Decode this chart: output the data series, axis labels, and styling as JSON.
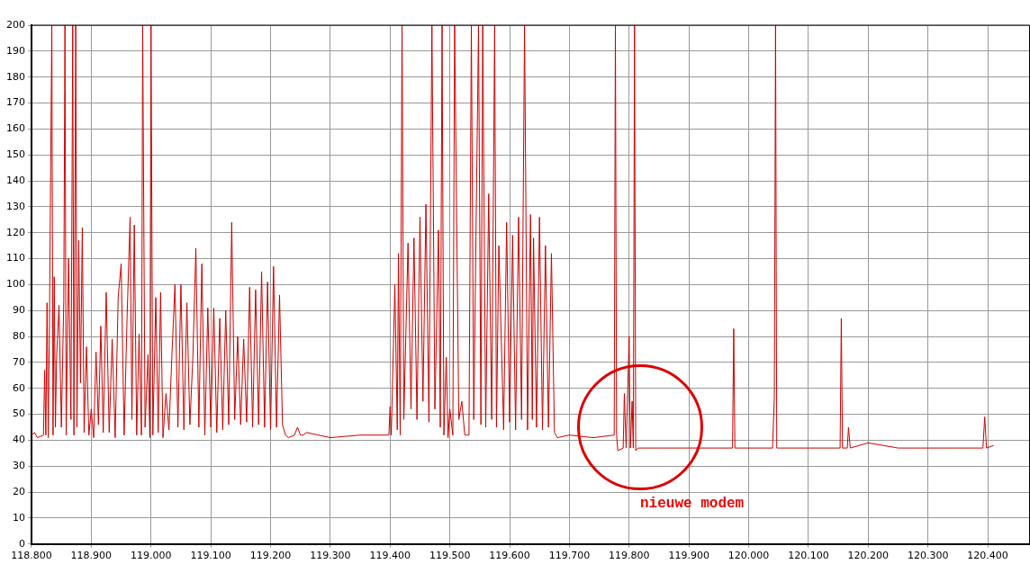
{
  "chart_data": {
    "type": "line",
    "xlim": [
      118800,
      120470
    ],
    "ylim": [
      0,
      200
    ],
    "xticks": [
      {
        "value": 118800,
        "label": "118.800"
      },
      {
        "value": 118900,
        "label": "118.900"
      },
      {
        "value": 119000,
        "label": "119.000"
      },
      {
        "value": 119100,
        "label": "119.100"
      },
      {
        "value": 119200,
        "label": "119.200"
      },
      {
        "value": 119300,
        "label": "119.300"
      },
      {
        "value": 119400,
        "label": "119.400"
      },
      {
        "value": 119500,
        "label": "119.500"
      },
      {
        "value": 119600,
        "label": "119.600"
      },
      {
        "value": 119700,
        "label": "119.700"
      },
      {
        "value": 119800,
        "label": "119.800"
      },
      {
        "value": 119900,
        "label": "119.900"
      },
      {
        "value": 120000,
        "label": "120.000"
      },
      {
        "value": 120100,
        "label": "120.100"
      },
      {
        "value": 120200,
        "label": "120.200"
      },
      {
        "value": 120300,
        "label": "120.300"
      },
      {
        "value": 120400,
        "label": "120.400"
      }
    ],
    "yticks": [
      0,
      10,
      20,
      30,
      40,
      50,
      60,
      70,
      80,
      90,
      100,
      110,
      120,
      130,
      140,
      150,
      160,
      170,
      180,
      190,
      200
    ],
    "grid": true,
    "legend": false,
    "marker": "none",
    "annotations": [
      "nieuwe modem"
    ],
    "series": [
      {
        "color": "#cc0000",
        "x": [
          118800,
          118805,
          118810,
          118820,
          118822,
          118824,
          118826,
          118828,
          118830,
          118834,
          118836,
          118838,
          118840,
          118842,
          118846,
          118850,
          118854,
          118856,
          118858,
          118862,
          118866,
          118869,
          118871,
          118874,
          118876,
          118879,
          118882,
          118885,
          118888,
          118892,
          118896,
          118900,
          118904,
          118908,
          118912,
          118916,
          118920,
          118925,
          118930,
          118935,
          118940,
          118945,
          118950,
          118955,
          118960,
          118965,
          118968,
          118972,
          118976,
          118980,
          118984,
          118986,
          118990,
          118995,
          118998,
          119000,
          119003,
          119008,
          119012,
          119016,
          119020,
          119025,
          119030,
          119035,
          119040,
          119045,
          119050,
          119055,
          119060,
          119065,
          119070,
          119075,
          119080,
          119085,
          119090,
          119095,
          119100,
          119105,
          119110,
          119115,
          119120,
          119125,
          119130,
          119135,
          119140,
          119145,
          119150,
          119155,
          119160,
          119165,
          119170,
          119175,
          119180,
          119185,
          119190,
          119195,
          119200,
          119205,
          119210,
          119215,
          119220,
          119225,
          119230,
          119240,
          119245,
          119250,
          119255,
          119260,
          119300,
          119350,
          119398,
          119400,
          119402,
          119408,
          119412,
          119414,
          119417,
          119420,
          119423,
          119430,
          119435,
          119440,
          119445,
          119450,
          119455,
          119460,
          119465,
          119470,
          119475,
          119481,
          119484,
          119487,
          119490,
          119494,
          119497,
          119500,
          119505,
          119508,
          119515,
          119520,
          119525,
          119528,
          119532,
          119536,
          119540,
          119548,
          119552,
          119555,
          119560,
          119565,
          119570,
          119575,
          119578,
          119582,
          119590,
          119595,
          119600,
          119605,
          119610,
          119615,
          119620,
          119625,
          119630,
          119635,
          119638,
          119640,
          119645,
          119650,
          119655,
          119660,
          119665,
          119670,
          119675,
          119680,
          119700,
          119740,
          119775,
          119777,
          119779,
          119781,
          119790,
          119792,
          119795,
          119800,
          119802,
          119805,
          119807,
          119809,
          119811,
          119815,
          119850,
          119900,
          119950,
          119973,
          119975,
          119977,
          119980,
          120030,
          120040,
          120043,
          120045,
          120047,
          120050,
          120100,
          120150,
          120153,
          120155,
          120157,
          120165,
          120167,
          120170,
          120200,
          120250,
          120300,
          120350,
          120392,
          120395,
          120398,
          120410
        ],
        "values": [
          42,
          43,
          41,
          42,
          67,
          42,
          93,
          41,
          85,
          200,
          42,
          103,
          45,
          72,
          92,
          45,
          94,
          200,
          42,
          110,
          48,
          200,
          42,
          200,
          45,
          117,
          62,
          122,
          43,
          76,
          42,
          52,
          41,
          74,
          46,
          84,
          43,
          97,
          43,
          79,
          41,
          95,
          108,
          42,
          88,
          126,
          48,
          123,
          42,
          81,
          42,
          200,
          45,
          73,
          41,
          200,
          42,
          95,
          43,
          97,
          41,
          58,
          44,
          73,
          100,
          45,
          100,
          44,
          93,
          46,
          72,
          114,
          45,
          108,
          42,
          91,
          45,
          91,
          43,
          87,
          44,
          90,
          46,
          124,
          48,
          80,
          46,
          79,
          47,
          99,
          45,
          98,
          46,
          105,
          45,
          101,
          44,
          107,
          45,
          96,
          46,
          42,
          41,
          42,
          45,
          42,
          42,
          43,
          41,
          42,
          42,
          53,
          42,
          100,
          44,
          112,
          42,
          200,
          48,
          116,
          52,
          118,
          48,
          126,
          55,
          131,
          47,
          200,
          52,
          121,
          45,
          200,
          42,
          72,
          41,
          52,
          42,
          200,
          48,
          55,
          42,
          42,
          42,
          200,
          48,
          200,
          46,
          200,
          45,
          135,
          48,
          200,
          45,
          115,
          44,
          124,
          47,
          119,
          44,
          126,
          48,
          200,
          44,
          127,
          48,
          118,
          45,
          126,
          44,
          115,
          45,
          112,
          43,
          41,
          42,
          41,
          42,
          200,
          42,
          36,
          37,
          58,
          37,
          80,
          37,
          55,
          37,
          200,
          36,
          37,
          37,
          37,
          37,
          37,
          83,
          37,
          37,
          37,
          37,
          57,
          200,
          37,
          37,
          37,
          37,
          37,
          87,
          37,
          37,
          45,
          37,
          39,
          37,
          37,
          37,
          37,
          49,
          37,
          38
        ]
      }
    ]
  }
}
